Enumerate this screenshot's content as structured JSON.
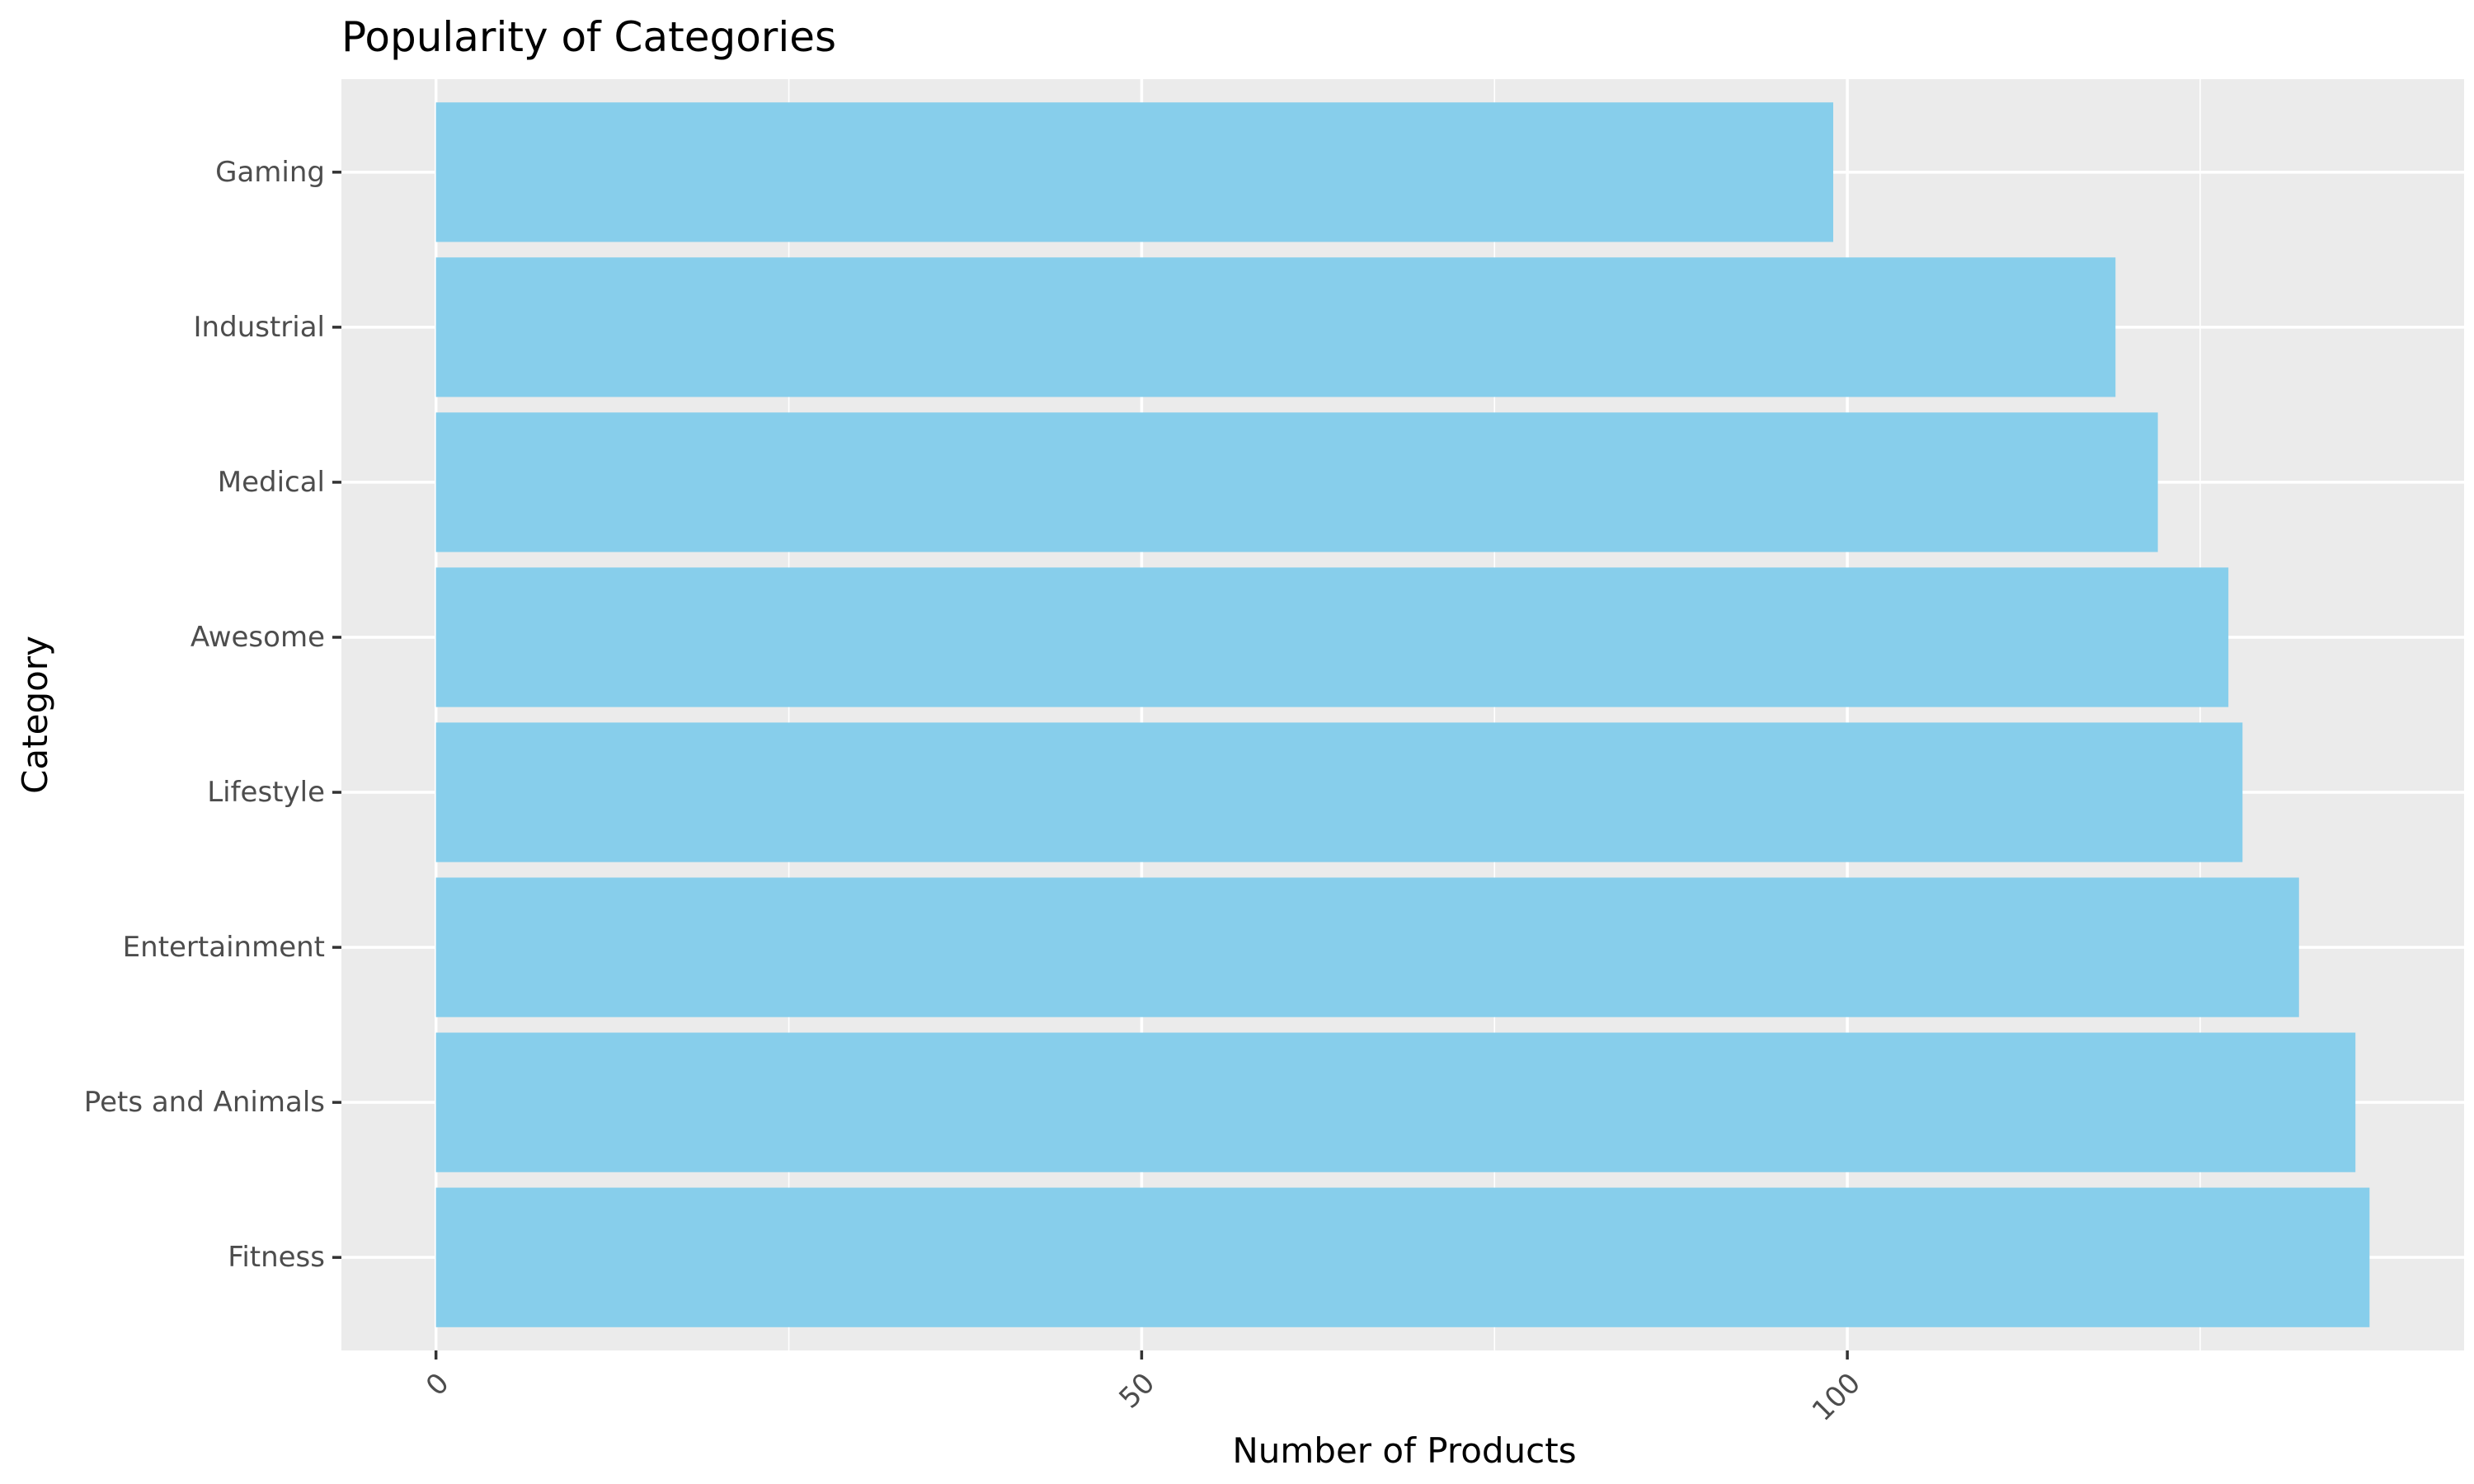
{
  "chart_data": {
    "type": "bar",
    "orientation": "horizontal",
    "title": "Popularity of Categories",
    "xlabel": "Number of Products",
    "ylabel": "Category",
    "categories": [
      "Gaming",
      "Industrial",
      "Medical",
      "Awesome",
      "Lifestyle",
      "Entertainment",
      "Pets and Animals",
      "Fitness"
    ],
    "values": [
      99,
      119,
      122,
      127,
      128,
      132,
      136,
      137
    ],
    "xlim": [
      -6.7,
      143.7
    ],
    "x_ticks": [
      0,
      50,
      100
    ],
    "x_tick_labels": [
      "0",
      "50",
      "100"
    ],
    "bar_color": "#87ceeb",
    "panel_color": "#ebebeb",
    "grid": true,
    "legend": "none"
  }
}
